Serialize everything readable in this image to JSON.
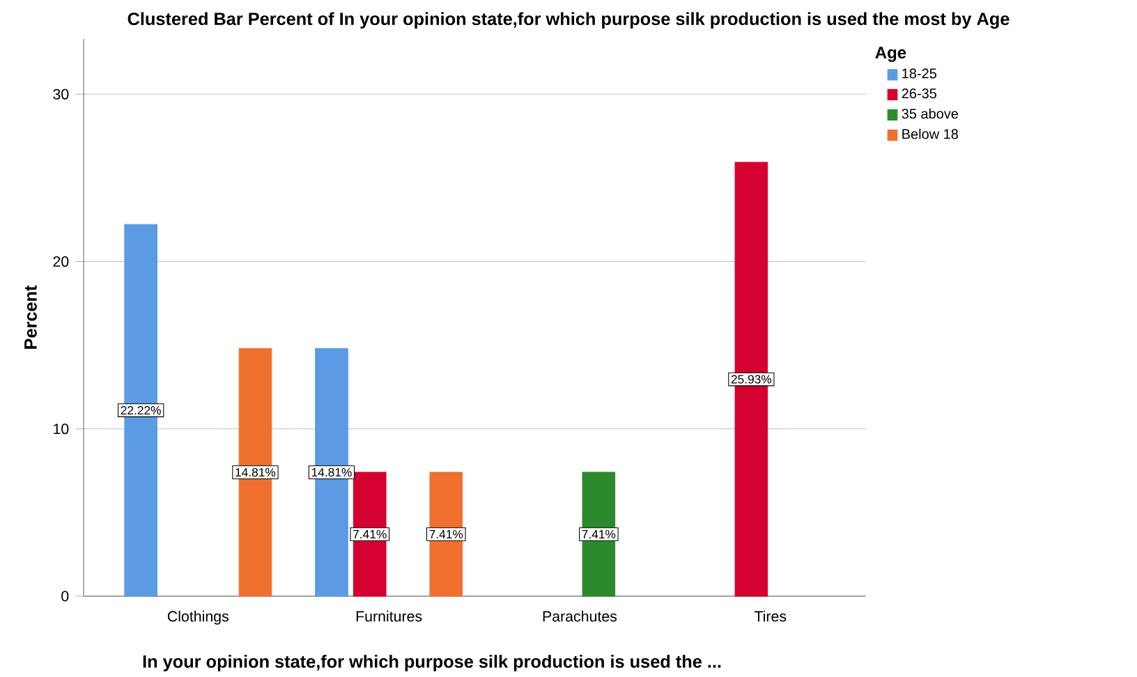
{
  "chart_data": {
    "type": "bar",
    "title": "Clustered Bar Percent of In your opinion state,for which purpose silk production is used the most by Age",
    "xlabel": "In your opinion state,for which purpose silk production is used the ...",
    "ylabel": "Percent",
    "legend_title": "Age",
    "categories": [
      "Clothings",
      "Furnitures",
      "Parachutes",
      "Tires"
    ],
    "series": [
      {
        "name": "18-25",
        "color": "#5a9be3",
        "values": [
          22.22,
          14.81,
          null,
          null
        ],
        "value_labels": [
          "22.22%",
          "14.81%",
          null,
          null
        ]
      },
      {
        "name": "26-35",
        "color": "#d4002f",
        "values": [
          null,
          7.41,
          null,
          25.93
        ],
        "value_labels": [
          null,
          "7.41%",
          null,
          "25.93%"
        ]
      },
      {
        "name": "35 above",
        "color": "#2b8a2b",
        "values": [
          null,
          null,
          7.41,
          null
        ],
        "value_labels": [
          null,
          null,
          "7.41%",
          null
        ]
      },
      {
        "name": "Below 18",
        "color": "#f0702f",
        "values": [
          14.81,
          7.41,
          null,
          null
        ],
        "value_labels": [
          "14.81%",
          "7.41%",
          null,
          null
        ]
      }
    ],
    "ylim": [
      0,
      33.3
    ],
    "yticks": [
      0,
      10,
      20,
      30
    ],
    "grid": "y",
    "legend": "top right"
  }
}
